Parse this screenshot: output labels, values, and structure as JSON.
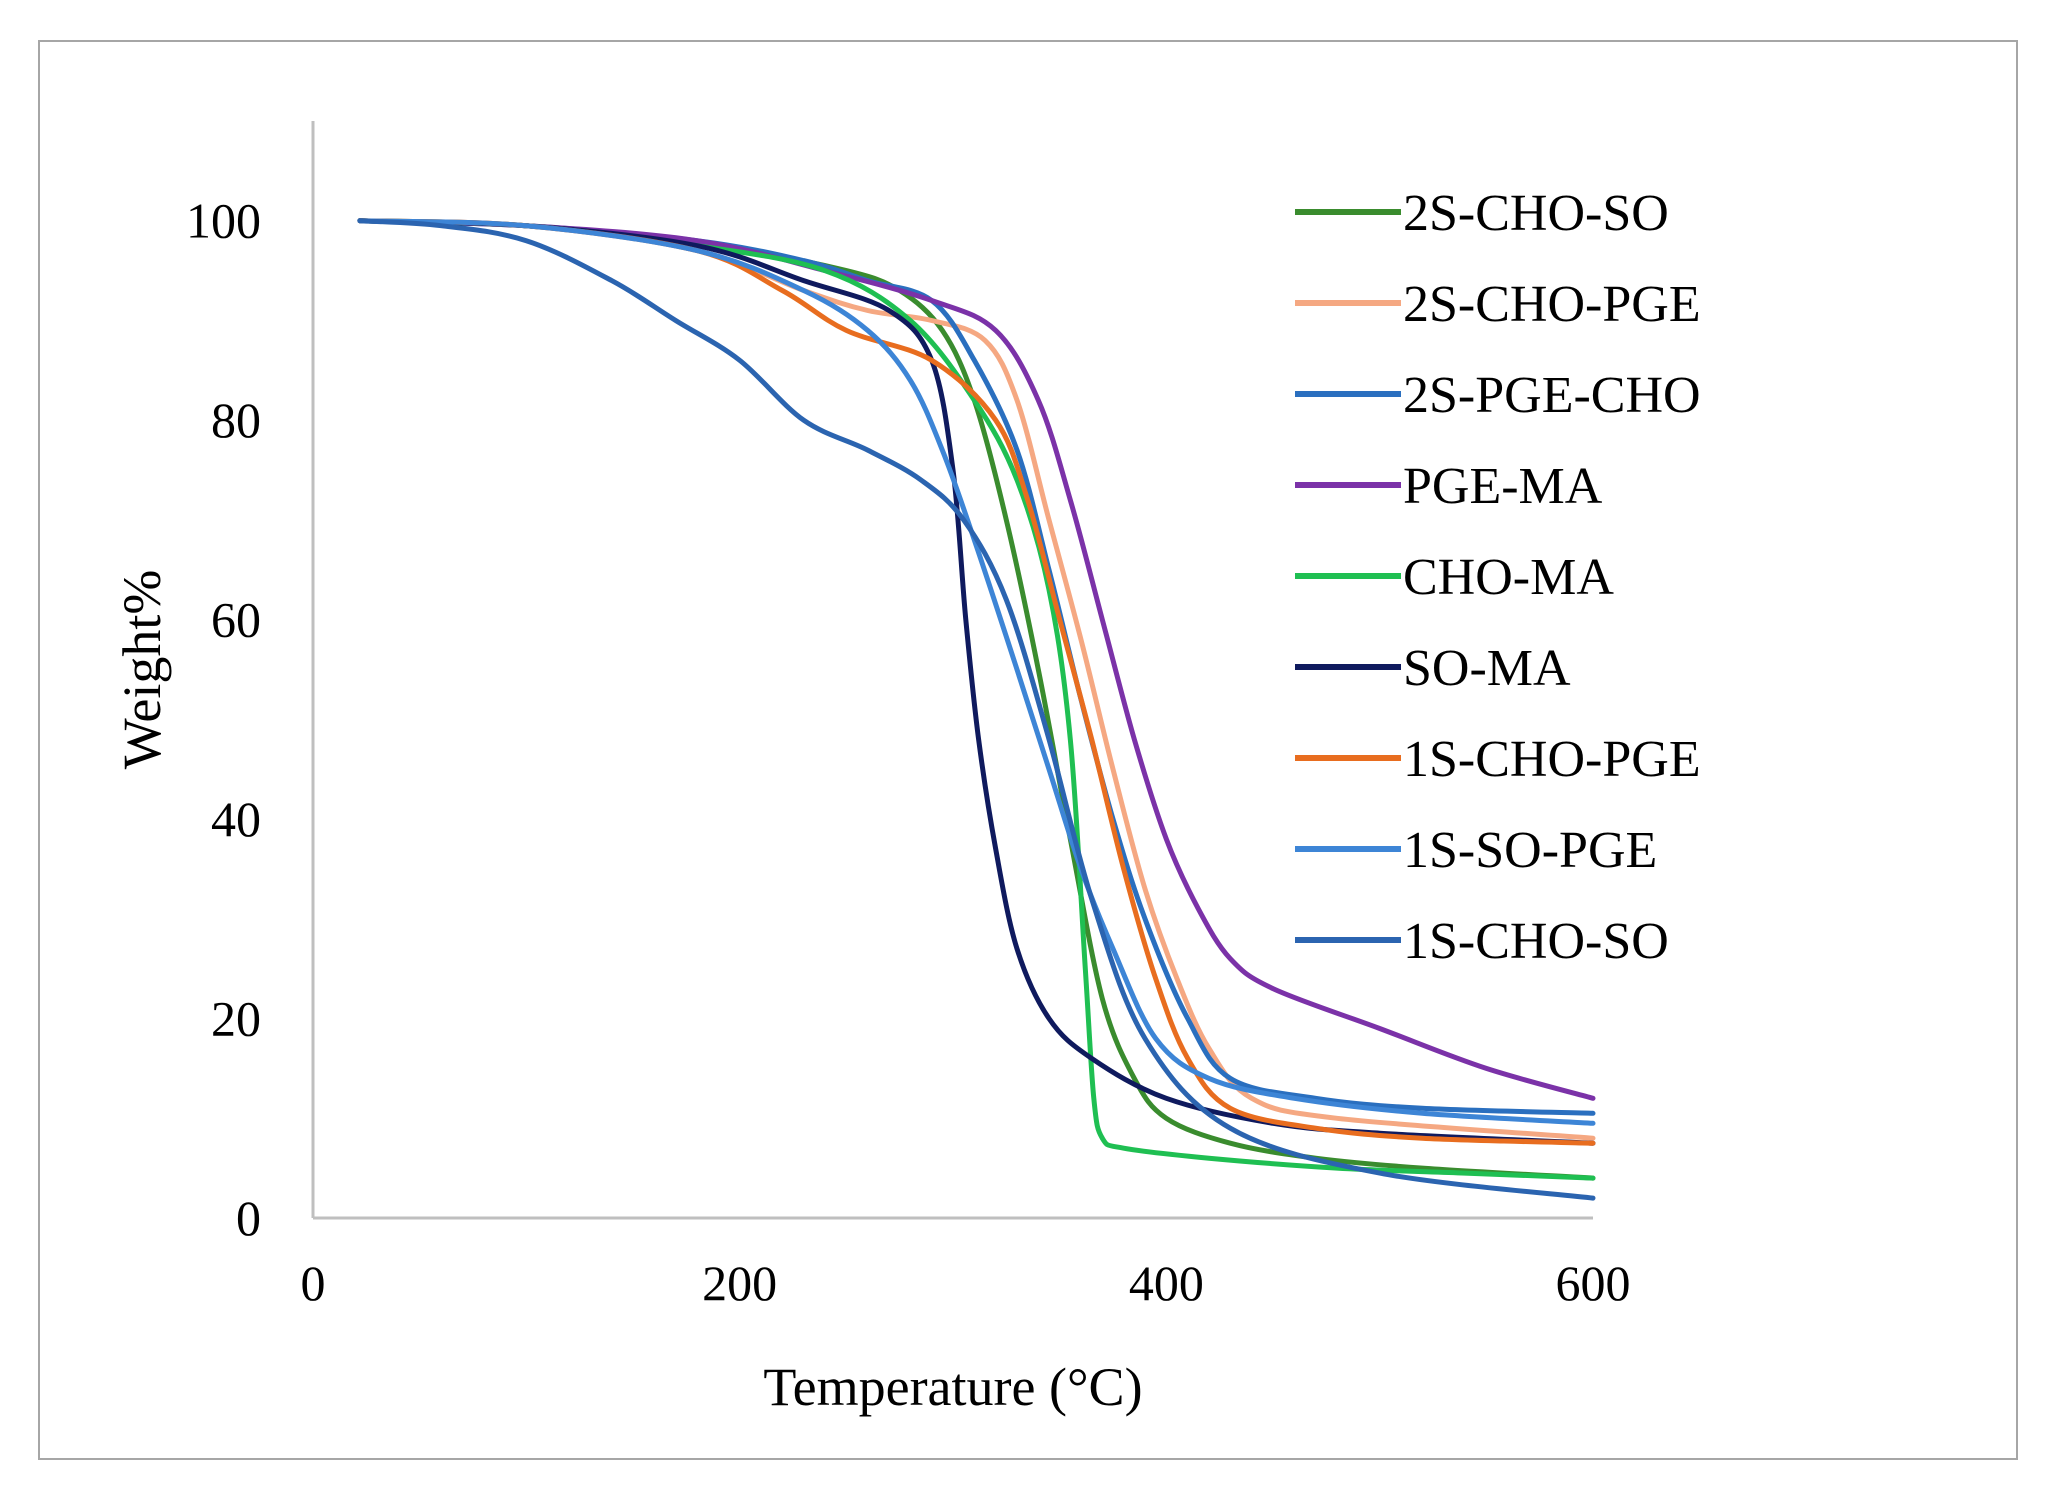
{
  "chart_data": {
    "type": "line",
    "title": "",
    "xlabel": "Temperature (°C)",
    "ylabel": "Weight%",
    "xlim": [
      0,
      600
    ],
    "ylim": [
      0,
      110
    ],
    "xticks": [
      0,
      200,
      400,
      600
    ],
    "yticks": [
      0,
      20,
      40,
      60,
      80,
      100
    ],
    "xtick_labels": [
      "0",
      "200",
      "400",
      "600"
    ],
    "ytick_labels": [
      "0",
      "20",
      "40",
      "60",
      "80",
      "100"
    ],
    "grid": false,
    "legend_position": "right",
    "series": [
      {
        "name": "2S-CHO-SO",
        "color": "#3a8c2e",
        "x": [
          22,
          100,
          200,
          250,
          275,
          295,
          310,
          325,
          340,
          355,
          370,
          385,
          400,
          430,
          470,
          520,
          600
        ],
        "y": [
          100,
          99.5,
          97,
          95,
          93,
          89,
          82,
          70,
          55,
          38,
          22,
          14,
          10,
          7.5,
          6,
          5,
          4
        ]
      },
      {
        "name": "2S-CHO-PGE",
        "color": "#f5a882",
        "x": [
          22,
          100,
          180,
          230,
          260,
          290,
          315,
          330,
          345,
          360,
          375,
          390,
          405,
          420,
          440,
          480,
          600
        ],
        "y": [
          100,
          99.5,
          97,
          93,
          91,
          90,
          88,
          82,
          70,
          58,
          45,
          33,
          24,
          17,
          12,
          10,
          8
        ]
      },
      {
        "name": "2S-PGE-CHO",
        "color": "#2a6fbf",
        "x": [
          22,
          100,
          180,
          230,
          260,
          290,
          310,
          330,
          345,
          360,
          375,
          390,
          410,
          430,
          470,
          520,
          600
        ],
        "y": [
          100,
          99.5,
          98,
          96,
          94,
          92,
          86,
          77,
          65,
          52,
          40,
          30,
          20,
          14,
          12,
          11,
          10.5
        ]
      },
      {
        "name": "PGE-MA",
        "color": "#7b32a8",
        "x": [
          22,
          100,
          180,
          240,
          290,
          320,
          340,
          355,
          370,
          385,
          400,
          415,
          430,
          450,
          500,
          550,
          600
        ],
        "y": [
          100,
          99.5,
          98,
          95,
          92,
          89,
          82,
          72,
          60,
          48,
          38,
          31,
          26,
          23,
          19,
          15,
          12
        ]
      },
      {
        "name": "CHO-MA",
        "color": "#1fbf52",
        "x": [
          22,
          100,
          180,
          240,
          280,
          310,
          330,
          345,
          355,
          362,
          366,
          370,
          380,
          420,
          480,
          540,
          600
        ],
        "y": [
          100,
          99.5,
          97.5,
          95,
          90,
          82,
          74,
          63,
          48,
          25,
          12,
          8,
          7,
          6,
          5,
          4.5,
          4
        ]
      },
      {
        "name": "SO-MA",
        "color": "#0f1a5e",
        "x": [
          22,
          100,
          180,
          230,
          270,
          290,
          300,
          306,
          312,
          320,
          330,
          345,
          365,
          400,
          450,
          500,
          600
        ],
        "y": [
          100,
          99.5,
          97.5,
          94,
          91,
          86,
          75,
          60,
          48,
          37,
          27,
          20,
          16,
          12,
          9.5,
          8.5,
          7.5
        ]
      },
      {
        "name": "1S-CHO-PGE",
        "color": "#e86d1f",
        "x": [
          22,
          100,
          180,
          220,
          250,
          290,
          320,
          335,
          350,
          365,
          380,
          395,
          410,
          430,
          470,
          520,
          600
        ],
        "y": [
          100,
          99.5,
          97,
          93,
          89,
          86,
          80,
          72,
          60,
          48,
          35,
          24,
          16,
          11,
          9,
          8,
          7.5
        ]
      },
      {
        "name": "1S-SO-PGE",
        "color": "#3d85d6",
        "x": [
          22,
          100,
          180,
          230,
          260,
          280,
          295,
          310,
          330,
          345,
          360,
          375,
          395,
          420,
          460,
          520,
          600
        ],
        "y": [
          100,
          99.5,
          97,
          93,
          89,
          84,
          77,
          68,
          55,
          45,
          35,
          27,
          18,
          14,
          12,
          10.5,
          9.5
        ]
      },
      {
        "name": "1S-CHO-SO",
        "color": "#2b64b0",
        "x": [
          22,
          60,
          100,
          140,
          170,
          200,
          230,
          260,
          285,
          305,
          325,
          345,
          365,
          390,
          430,
          500,
          600
        ],
        "y": [
          100,
          99.5,
          98,
          94,
          90,
          86,
          80,
          77,
          74,
          70,
          62,
          48,
          32,
          18,
          9,
          4.5,
          2
        ]
      }
    ]
  }
}
